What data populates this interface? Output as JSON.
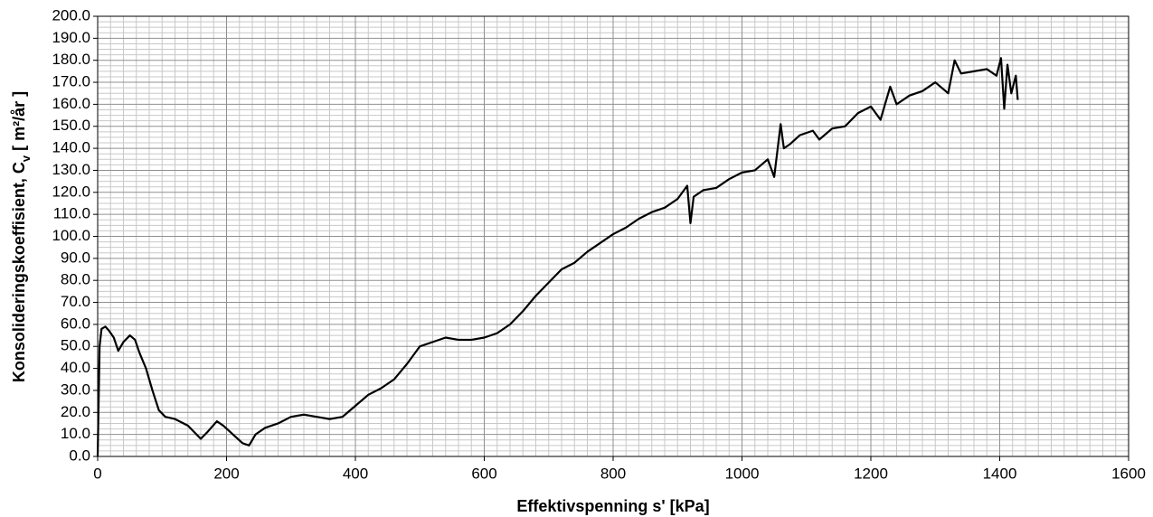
{
  "chart_data": {
    "type": "line",
    "xlabel": "Effektivspenning s' [kPa]",
    "ylabel": [
      "Konsolideringskoeffisient,  C",
      "v",
      " [ m²/år ]"
    ],
    "xlim": [
      0,
      1600
    ],
    "ylim": [
      0,
      200
    ],
    "xticks": [
      0,
      200,
      400,
      600,
      800,
      1000,
      1200,
      1400,
      1600
    ],
    "yticks": [
      {
        "value": 0,
        "label": "0.0"
      },
      {
        "value": 10,
        "label": "10.0"
      },
      {
        "value": 20,
        "label": "20.0"
      },
      {
        "value": 30,
        "label": "30.0"
      },
      {
        "value": 40,
        "label": "40.0"
      },
      {
        "value": 50,
        "label": "50.0"
      },
      {
        "value": 60,
        "label": "60.0"
      },
      {
        "value": 70,
        "label": "70.0"
      },
      {
        "value": 80,
        "label": "80.0"
      },
      {
        "value": 90,
        "label": "90.0"
      },
      {
        "value": 100,
        "label": "100.0"
      },
      {
        "value": 110,
        "label": "110.0"
      },
      {
        "value": 120,
        "label": "120.0"
      },
      {
        "value": 130,
        "label": "130.0"
      },
      {
        "value": 140,
        "label": "140.0"
      },
      {
        "value": 150,
        "label": "150.0"
      },
      {
        "value": 160,
        "label": "160.0"
      },
      {
        "value": 170,
        "label": "170.0"
      },
      {
        "value": 180,
        "label": "180.0"
      },
      {
        "value": 190,
        "label": "190.0"
      },
      {
        "value": 200,
        "label": "200.0"
      }
    ],
    "xminor_ticks": [
      20,
      40,
      60,
      80,
      100,
      120,
      140,
      160,
      180,
      220,
      240,
      260,
      280,
      300,
      320,
      340,
      360,
      380,
      420,
      440,
      460,
      480,
      500,
      520,
      540,
      560,
      580,
      620,
      640,
      660,
      680,
      700,
      720,
      740,
      760,
      780,
      820,
      840,
      860,
      880,
      900,
      920,
      940,
      960,
      980,
      1020,
      1040,
      1060,
      1080,
      1100,
      1120,
      1140,
      1160,
      1180,
      1220,
      1240,
      1260,
      1280,
      1300,
      1320,
      1340,
      1360,
      1380,
      1420,
      1440,
      1460,
      1480,
      1500,
      1520,
      1540,
      1560,
      1580
    ],
    "yminor_ticks": [
      2.5,
      5,
      7.5,
      12.5,
      15,
      17.5,
      22.5,
      25,
      27.5,
      32.5,
      35,
      37.5,
      42.5,
      45,
      47.5,
      52.5,
      55,
      57.5,
      62.5,
      65,
      67.5,
      72.5,
      75,
      77.5,
      82.5,
      85,
      87.5,
      92.5,
      95,
      97.5,
      102.5,
      105,
      107.5,
      112.5,
      115,
      117.5,
      122.5,
      125,
      127.5,
      132.5,
      135,
      137.5,
      142.5,
      145,
      147.5,
      152.5,
      155,
      157.5,
      162.5,
      165,
      167.5,
      172.5,
      175,
      177.5,
      182.5,
      185,
      187.5,
      192.5,
      195,
      197.5
    ],
    "grid": true,
    "series": [
      {
        "color": "#000000",
        "x": [
          0,
          3,
          6,
          12,
          18,
          25,
          32,
          40,
          50,
          58,
          65,
          75,
          85,
          95,
          105,
          120,
          140,
          160,
          170,
          185,
          195,
          210,
          225,
          235,
          245,
          260,
          280,
          300,
          320,
          340,
          360,
          380,
          400,
          420,
          440,
          460,
          480,
          500,
          520,
          540,
          560,
          580,
          600,
          620,
          640,
          660,
          680,
          700,
          720,
          740,
          760,
          780,
          800,
          820,
          840,
          860,
          880,
          900,
          915,
          920,
          925,
          940,
          960,
          980,
          1000,
          1020,
          1040,
          1050,
          1060,
          1065,
          1075,
          1090,
          1110,
          1120,
          1140,
          1160,
          1180,
          1200,
          1215,
          1230,
          1240,
          1260,
          1280,
          1300,
          1320,
          1330,
          1340,
          1360,
          1380,
          1395,
          1402,
          1407,
          1412,
          1418,
          1425,
          1428
        ],
        "values": [
          0,
          50,
          58,
          59,
          57,
          54,
          48,
          52,
          55,
          53,
          47,
          40,
          30,
          21,
          18,
          17,
          14,
          8,
          11,
          16,
          14,
          10,
          6,
          5,
          10,
          13,
          15,
          18,
          19,
          18,
          17,
          18,
          23,
          28,
          31,
          35,
          42,
          50,
          52,
          54,
          53,
          53,
          54,
          56,
          60,
          66,
          73,
          79,
          85,
          88,
          93,
          97,
          101,
          104,
          108,
          111,
          113,
          117,
          123,
          106,
          118,
          121,
          122,
          126,
          129,
          130,
          135,
          127,
          151,
          140,
          142,
          146,
          148,
          144,
          149,
          150,
          156,
          159,
          153,
          168,
          160,
          164,
          166,
          170,
          165,
          180,
          174,
          175,
          176,
          173,
          181,
          158,
          178,
          165,
          173,
          162
        ]
      }
    ]
  }
}
